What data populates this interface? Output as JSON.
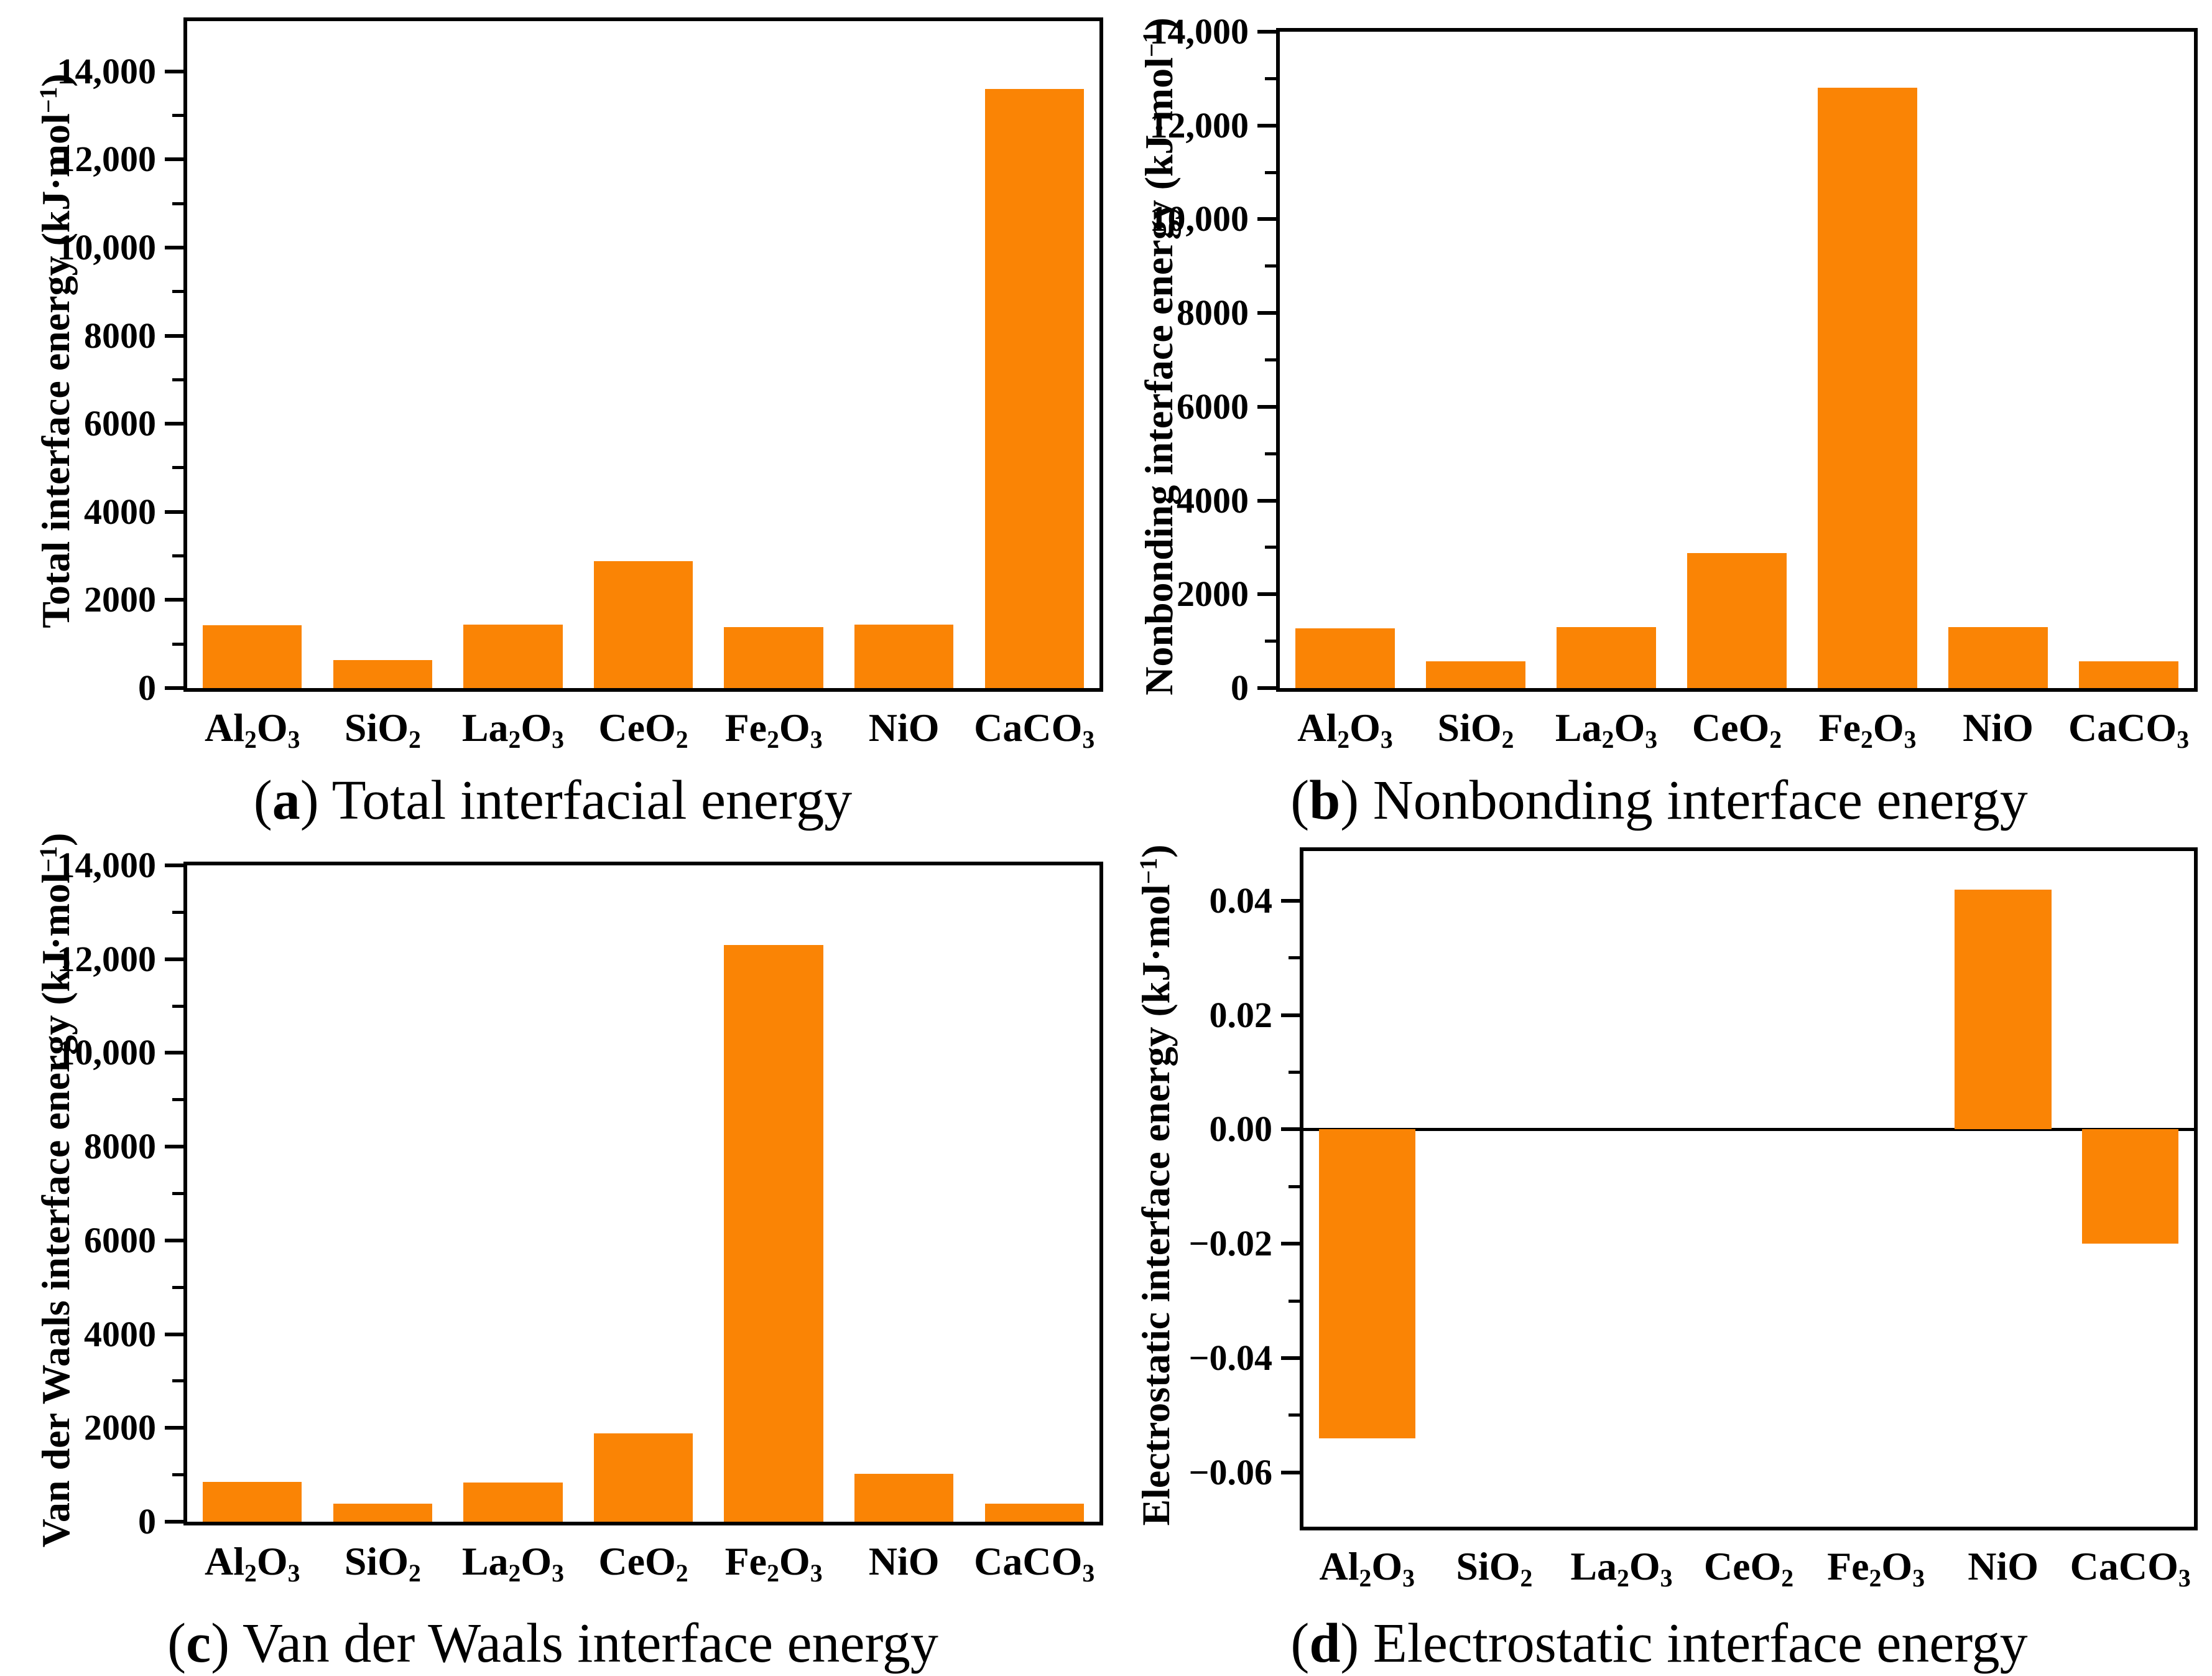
{
  "figure": {
    "bar_color": "#FA8405",
    "axis_color": "#000000",
    "background": "#ffffff"
  },
  "chart_data": [
    {
      "type": "bar",
      "panel": "a",
      "caption": {
        "open": "(",
        "label": "a",
        "close": ")",
        "text": " Total interfacial energy"
      },
      "title": "",
      "xlabel": "",
      "ylabel": "Total interface energy (kJ·mol^−1^)",
      "categories": [
        "Al_2_O_3",
        "SiO_2",
        "La_2_O_3",
        "CeO_2",
        "Fe_2_O_3",
        "NiO",
        "CaCO_3"
      ],
      "values": [
        1420,
        640,
        1440,
        2880,
        1380,
        1440,
        13600
      ],
      "ylim": [
        0,
        15140
      ],
      "yticks": [
        {
          "v": 14000,
          "label": "14,000"
        },
        {
          "v": 12000,
          "label": "12,000"
        },
        {
          "v": 10000,
          "label": "10,000"
        },
        {
          "v": 8000,
          "label": "8000"
        },
        {
          "v": 6000,
          "label": "6000"
        },
        {
          "v": 4000,
          "label": "4000"
        },
        {
          "v": 2000,
          "label": "2000"
        },
        {
          "v": 0,
          "label": "0"
        }
      ],
      "minor_step": 1000,
      "grid": false,
      "legend": "none"
    },
    {
      "type": "bar",
      "panel": "b",
      "caption": {
        "open": "(",
        "label": "b",
        "close": ")",
        "text": " Nonbonding interface energy"
      },
      "title": "",
      "xlabel": "",
      "ylabel": "Nonbonding interface energy (kJ·mol^−1^)",
      "categories": [
        "Al_2_O_3",
        "SiO_2",
        "La_2_O_3",
        "CeO_2",
        "Fe_2_O_3",
        "NiO",
        "CaCO_3"
      ],
      "values": [
        1280,
        570,
        1300,
        2880,
        12800,
        1300,
        570
      ],
      "ylim": [
        0,
        14000
      ],
      "yticks": [
        {
          "v": 14000,
          "label": "14,000"
        },
        {
          "v": 12000,
          "label": "12,000"
        },
        {
          "v": 10000,
          "label": "10,000"
        },
        {
          "v": 8000,
          "label": "8000"
        },
        {
          "v": 6000,
          "label": "6000"
        },
        {
          "v": 4000,
          "label": "4000"
        },
        {
          "v": 2000,
          "label": "2000"
        },
        {
          "v": 0,
          "label": "0"
        }
      ],
      "minor_step": 1000,
      "grid": false,
      "legend": "none"
    },
    {
      "type": "bar",
      "panel": "c",
      "caption": {
        "open": "(",
        "label": "c",
        "close": ")",
        "text": " Van der Waals interface energy"
      },
      "title": "",
      "xlabel": "",
      "ylabel": "Van der Waals interface energy (kJ·mol^−1^)",
      "categories": [
        "Al_2_O_3",
        "SiO_2",
        "La_2_O_3",
        "CeO_2",
        "Fe_2_O_3",
        "NiO",
        "CaCO_3"
      ],
      "values": [
        850,
        380,
        830,
        1890,
        12300,
        1020,
        380
      ],
      "ylim": [
        0,
        14000
      ],
      "yticks": [
        {
          "v": 14000,
          "label": "14,000"
        },
        {
          "v": 12000,
          "label": "12,000"
        },
        {
          "v": 10000,
          "label": "10,000"
        },
        {
          "v": 8000,
          "label": "8000"
        },
        {
          "v": 6000,
          "label": "6000"
        },
        {
          "v": 4000,
          "label": "4000"
        },
        {
          "v": 2000,
          "label": "2000"
        },
        {
          "v": 0,
          "label": "0"
        }
      ],
      "minor_step": 1000,
      "grid": false,
      "legend": "none"
    },
    {
      "type": "bar",
      "panel": "d",
      "caption": {
        "open": "(",
        "label": "d",
        "close": ")",
        "text": " Electrostatic interface energy"
      },
      "title": "",
      "xlabel": "",
      "ylabel": "Electrostatic interface energy (kJ·mol^−1^)",
      "categories": [
        "Al_2_O_3",
        "SiO_2",
        "La_2_O_3",
        "CeO_2",
        "Fe_2_O_3",
        "NiO",
        "CaCO_3"
      ],
      "values": [
        -0.054,
        0,
        0,
        0,
        0,
        0.042,
        -0.02
      ],
      "ylim": [
        -0.0695,
        0.0487
      ],
      "yticks": [
        {
          "v": 0.04,
          "label": "0.04"
        },
        {
          "v": 0.02,
          "label": "0.02"
        },
        {
          "v": 0.0,
          "label": "0.00"
        },
        {
          "v": -0.02,
          "label": "−0.02"
        },
        {
          "v": -0.04,
          "label": "−0.04"
        },
        {
          "v": -0.06,
          "label": "−0.06"
        }
      ],
      "minor_step": 0.01,
      "zero_line": true,
      "grid": false,
      "legend": "none"
    }
  ]
}
